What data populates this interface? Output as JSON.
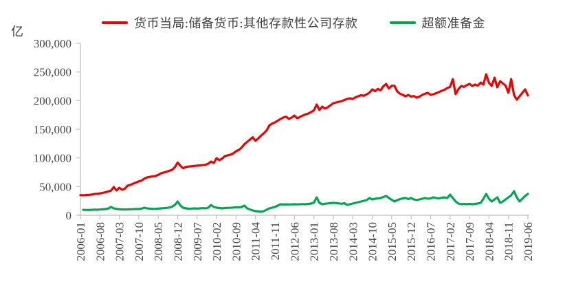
{
  "unit_label": "亿",
  "axis_color": "#bfbfbf",
  "chart_data": {
    "type": "line",
    "title": "",
    "xlabel": "",
    "ylabel": "亿",
    "ylim": [
      0,
      300000
    ],
    "grid": false,
    "legend_position": "top",
    "start_month": "2006-01",
    "end_month": "2019-06",
    "frequency": "monthly",
    "x_tick_interval_months": 7,
    "x_tick_labels": [
      "2006-01",
      "2006-08",
      "2007-03",
      "2007-10",
      "2008-05",
      "2008-12",
      "2009-07",
      "2010-02",
      "2010-09",
      "2011-04",
      "2011-11",
      "2012-06",
      "2013-01",
      "2013-08",
      "2014-03",
      "2014-10",
      "2015-05",
      "2015-12",
      "2016-07",
      "2017-02",
      "2017-09",
      "2018-04",
      "2018-11",
      "2019-06"
    ],
    "y_tick_labels": [
      "0",
      "50,000",
      "100,000",
      "150,000",
      "200,000",
      "250,000",
      "300,000"
    ],
    "series": [
      {
        "name": "货币当局:储备货币:其他存款性公司存款",
        "color": "#ec0000",
        "values": [
          35000,
          34800,
          35200,
          35500,
          36000,
          37000,
          37400,
          38000,
          39000,
          40200,
          41500,
          43000,
          49200,
          43200,
          48000,
          44400,
          46500,
          51600,
          53000,
          55200,
          57000,
          59000,
          60500,
          64000,
          66000,
          67000,
          67800,
          68400,
          70500,
          73200,
          74500,
          76000,
          77500,
          79200,
          84000,
          92000,
          86000,
          82000,
          84500,
          85000,
          85500,
          86000,
          86500,
          87000,
          87500,
          88000,
          90000,
          93600,
          91200,
          99600,
          96000,
          99000,
          103200,
          104500,
          105600,
          108000,
          111600,
          114000,
          118000,
          124000,
          128000,
          132000,
          136000,
          130000,
          134000,
          139000,
          143000,
          148000,
          157000,
          160000,
          162000,
          165000,
          168000,
          170500,
          172000,
          168000,
          170500,
          174000,
          169200,
          171500,
          174000,
          176000,
          177500,
          180000,
          183000,
          193200,
          183600,
          189600,
          186000,
          188500,
          192000,
          195600,
          196800,
          198000,
          199200,
          201000,
          203000,
          204000,
          203000,
          206000,
          207600,
          209500,
          208500,
          211000,
          214000,
          219600,
          216500,
          220500,
          218000,
          225000,
          229200,
          221000,
          226000,
          226000,
          216000,
          212000,
          210000,
          207600,
          210000,
          207000,
          208000,
          205200,
          207000,
          210000,
          212000,
          213600,
          210000,
          211200,
          213000,
          215000,
          217200,
          219000,
          222000,
          224000,
          237600,
          211200,
          220000,
          225600,
          224000,
          227000,
          229200,
          225600,
          228000,
          226000,
          231600,
          228000,
          246000,
          231000,
          225600,
          240000,
          223200,
          234000,
          230000,
          226000,
          213600,
          237600,
          210000,
          201600,
          207600,
          213600,
          219600,
          209000
        ]
      },
      {
        "name": "超额准备金",
        "color": "#00a64f",
        "values": [
          null,
          9500,
          9200,
          9300,
          9500,
          9800,
          9600,
          10000,
          10300,
          10800,
          11500,
          14400,
          12000,
          11000,
          10500,
          10200,
          10000,
          10200,
          10400,
          10600,
          11000,
          10800,
          11500,
          13200,
          12000,
          11400,
          11000,
          11200,
          11500,
          12000,
          12400,
          12800,
          13400,
          15000,
          18000,
          24000,
          16800,
          13000,
          12000,
          11400,
          11600,
          12000,
          11600,
          12000,
          12400,
          12000,
          13200,
          18000,
          14400,
          13200,
          12600,
          12000,
          12600,
          13000,
          13000,
          13400,
          14000,
          13600,
          14400,
          16800,
          12000,
          10000,
          8400,
          7200,
          6600,
          6000,
          7200,
          9600,
          12000,
          13200,
          14400,
          16800,
          19200,
          18600,
          19000,
          18800,
          19000,
          19200,
          19000,
          19200,
          19400,
          19200,
          19800,
          20400,
          22000,
          31200,
          21600,
          19200,
          20000,
          20600,
          21000,
          21600,
          21200,
          20600,
          20000,
          21000,
          18000,
          19200,
          20400,
          21600,
          22800,
          24000,
          25200,
          26400,
          30000,
          27600,
          28800,
          29400,
          30000,
          31800,
          33600,
          30000,
          27000,
          24000,
          26400,
          28200,
          29400,
          30000,
          28200,
          30000,
          27600,
          26400,
          27600,
          28800,
          30000,
          28800,
          29400,
          31200,
          30000,
          29400,
          30600,
          31200,
          30000,
          36000,
          30000,
          24000,
          20400,
          19200,
          19800,
          19200,
          19800,
          19200,
          19800,
          20400,
          21600,
          28800,
          37200,
          28800,
          24000,
          27600,
          31200,
          21600,
          24000,
          27600,
          31200,
          34800,
          42000,
          31200,
          24000,
          28800,
          33600,
          37200
        ]
      }
    ]
  }
}
